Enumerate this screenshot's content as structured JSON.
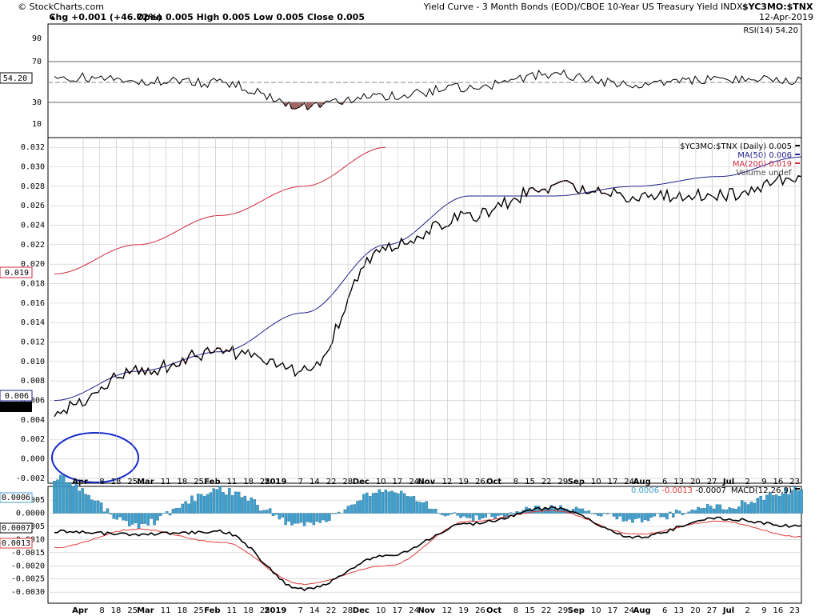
{
  "header": {
    "symbol": "$YC3MO:$TNX",
    "name": "Yield Curve - 3 Month Bonds (EOD)/CBOE 10-Year US Treasury Yield INDX",
    "provider": "© StockCharts.com",
    "date": "12-Apr-2019",
    "ohlc_label": "Open 0.005  High 0.005  Low 0.005  Close 0.005",
    "change_label": "Chg +0.001 (+46.72%)",
    "change_icon": "triangle-up-icon"
  },
  "rsi_panel": {
    "legend": "RSI(14) 54.20",
    "value_label": "54.20",
    "ticks": [
      "90",
      "70",
      "50",
      "30",
      "10"
    ]
  },
  "price_panel": {
    "legend": {
      "main": "$YC3MO:$TNX (Daily) 0.005",
      "ma50": "MA(50) 0.006",
      "ma200": "MA(200) 0.019",
      "volume": "Volume undef"
    },
    "ticks": [
      "0.032",
      "0.030",
      "0.028",
      "0.026",
      "0.024",
      "0.022",
      "0.020",
      "0.018",
      "0.016",
      "0.014",
      "0.012",
      "0.010",
      "0.008",
      "0.006",
      "0.004",
      "0.002",
      "0.000",
      "-0.002"
    ],
    "last_labels": {
      "ma200": "0.019",
      "ma50": "0.006",
      "price": "0.005"
    }
  },
  "macd_panel": {
    "legend_prefix": "MACD(12,26,9)",
    "macd": "-0.0007",
    "signal": "-0.0013",
    "hist": "0.0006",
    "ticks": [
      "0.0005",
      "0.0000",
      "-0.0005",
      "-0.0010",
      "-0.0015",
      "-0.0020",
      "-0.0025",
      "-0.0030"
    ],
    "last_labels": {
      "hist": "0.0006",
      "macd": "-0.0007",
      "signal": "-0.0013"
    }
  },
  "x_axis": {
    "labels": [
      "Apr",
      "8",
      "18",
      "25",
      "Mar",
      "11",
      "18",
      "25",
      "Feb",
      "11",
      "18",
      "25",
      "2019",
      "7",
      "14",
      "22",
      "28",
      "Dec",
      "10",
      "17",
      "24",
      "Nov",
      "12",
      "19",
      "26",
      "Oct",
      "8",
      "15",
      "22",
      "29",
      "Sep",
      "10",
      "17",
      "24",
      "Aug",
      "6",
      "13",
      "20",
      "27",
      "Jul",
      "2",
      "9",
      "16",
      "23"
    ]
  },
  "colors": {
    "price": "#000000",
    "price_rising": "#c0143c",
    "ma50": "#1e1e8c",
    "ma200": "#d2283c",
    "rsi": "#000000",
    "rsi_oversold_fill": "#a06464",
    "macd": "#000000",
    "signal": "#e03c3c",
    "hist": "#3ca0d0",
    "circle": "#1428c8",
    "grid": "#c8c8c8"
  },
  "chart_data": [
    {
      "type": "line",
      "title": "RSI(14)",
      "ylim": [
        0,
        100
      ],
      "x": [
        "Jul",
        "Aug",
        "Sep",
        "Oct",
        "Nov",
        "Dec",
        "2019",
        "Feb",
        "Mar",
        "Apr"
      ],
      "series": [
        {
          "name": "RSI(14)",
          "values": [
            50,
            52,
            46,
            56,
            44,
            36,
            27,
            48,
            50,
            54.2
          ]
        }
      ]
    },
    {
      "type": "line",
      "title": "$YC3MO:$TNX (Daily) 0.005",
      "ylim": [
        -0.002,
        0.032
      ],
      "x": [
        "Jul",
        "Aug",
        "Sep",
        "Oct",
        "Nov",
        "Dec",
        "2019",
        "Feb",
        "Mar",
        "Apr"
      ],
      "series": [
        {
          "name": "$YC3MO:$TNX (Daily) 0.005",
          "values": [
            0.029,
            0.027,
            0.027,
            0.028,
            0.025,
            0.022,
            0.009,
            0.011,
            0.009,
            0.005
          ]
        },
        {
          "name": "MA(50) 0.006",
          "values": [
            0.031,
            0.029,
            0.028,
            0.027,
            0.027,
            0.022,
            0.015,
            0.011,
            0.009,
            0.006
          ]
        },
        {
          "name": "MA(200) 0.019",
          "values": [
            null,
            null,
            null,
            null,
            null,
            0.032,
            0.028,
            0.025,
            0.022,
            0.019
          ]
        }
      ]
    },
    {
      "type": "line",
      "title": "MACD(12,26,9) -0.0007, -0.0013, 0.0006",
      "ylim": [
        -0.0032,
        0.0008
      ],
      "x": [
        "Jul",
        "Aug",
        "Sep",
        "Oct",
        "Nov",
        "Dec",
        "2019",
        "Feb",
        "Mar",
        "Apr"
      ],
      "series": [
        {
          "name": "MACD",
          "values": [
            -0.0005,
            -0.0002,
            -0.0009,
            0.0002,
            -0.0004,
            -0.0016,
            -0.0029,
            -0.0007,
            -0.0008,
            -0.0007
          ]
        },
        {
          "name": "Signal",
          "values": [
            -0.0009,
            -0.0003,
            -0.0008,
            0.0001,
            -0.0003,
            -0.002,
            -0.0027,
            -0.0011,
            -0.0006,
            -0.0013
          ]
        },
        {
          "name": "Histogram",
          "values": [
            0.0004,
            0.0001,
            -0.0001,
            0.0001,
            -0.0001,
            0.0004,
            -0.0002,
            0.0004,
            -0.0002,
            0.0006
          ]
        }
      ]
    }
  ]
}
